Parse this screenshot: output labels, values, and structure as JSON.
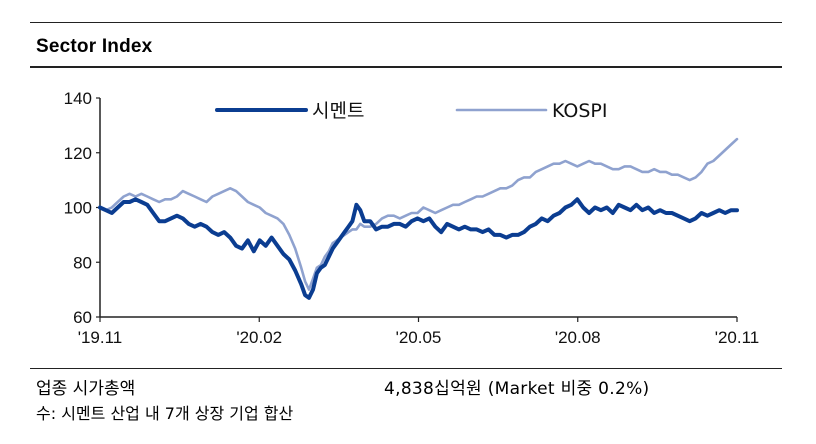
{
  "title": "Sector Index",
  "footer": {
    "left_label": "업종 시가총액",
    "right_value": "4,838십억원 (Market 비중 0.2%)",
    "note": "수: 시멘트 산업 내 7개 상장 기업 합산"
  },
  "chart_data": {
    "type": "line",
    "x_ticks": [
      "'19.11",
      "'20.02",
      "'20.05",
      "'20.08",
      "'20.11"
    ],
    "y_ticks": [
      60,
      80,
      100,
      120,
      140
    ],
    "ylim": [
      60,
      140
    ],
    "grid": false,
    "legend_position": "top-center",
    "series": [
      {
        "name": "시멘트",
        "color": "#0b3d91",
        "points": [
          [
            0,
            100
          ],
          [
            3,
            99
          ],
          [
            6,
            98
          ],
          [
            9,
            100
          ],
          [
            12,
            102
          ],
          [
            15,
            102
          ],
          [
            18,
            103
          ],
          [
            21,
            102
          ],
          [
            24,
            101
          ],
          [
            27,
            98
          ],
          [
            30,
            95
          ],
          [
            33,
            95
          ],
          [
            36,
            96
          ],
          [
            39,
            97
          ],
          [
            42,
            96
          ],
          [
            45,
            94
          ],
          [
            48,
            93
          ],
          [
            51,
            94
          ],
          [
            54,
            93
          ],
          [
            57,
            91
          ],
          [
            60,
            90
          ],
          [
            63,
            91
          ],
          [
            66,
            89
          ],
          [
            69,
            86
          ],
          [
            72,
            85
          ],
          [
            75,
            88
          ],
          [
            78,
            84
          ],
          [
            81,
            88
          ],
          [
            84,
            86
          ],
          [
            87,
            89
          ],
          [
            90,
            86
          ],
          [
            93,
            83
          ],
          [
            96,
            81
          ],
          [
            99,
            77
          ],
          [
            102,
            72
          ],
          [
            104,
            68
          ],
          [
            106,
            67
          ],
          [
            108,
            70
          ],
          [
            110,
            76
          ],
          [
            112,
            78
          ],
          [
            114,
            79
          ],
          [
            116,
            82
          ],
          [
            118,
            85
          ],
          [
            120,
            87
          ],
          [
            122,
            89
          ],
          [
            124,
            91
          ],
          [
            126,
            93
          ],
          [
            128,
            95
          ],
          [
            130,
            101
          ],
          [
            132,
            99
          ],
          [
            134,
            95
          ],
          [
            137,
            95
          ],
          [
            140,
            92
          ],
          [
            143,
            93
          ],
          [
            146,
            93
          ],
          [
            149,
            94
          ],
          [
            152,
            94
          ],
          [
            155,
            93
          ],
          [
            158,
            95
          ],
          [
            161,
            96
          ],
          [
            164,
            95
          ],
          [
            167,
            96
          ],
          [
            170,
            93
          ],
          [
            173,
            91
          ],
          [
            176,
            94
          ],
          [
            179,
            93
          ],
          [
            182,
            92
          ],
          [
            185,
            93
          ],
          [
            188,
            92
          ],
          [
            191,
            92
          ],
          [
            194,
            91
          ],
          [
            197,
            92
          ],
          [
            200,
            90
          ],
          [
            203,
            90
          ],
          [
            206,
            89
          ],
          [
            209,
            90
          ],
          [
            212,
            90
          ],
          [
            215,
            91
          ],
          [
            218,
            93
          ],
          [
            221,
            94
          ],
          [
            224,
            96
          ],
          [
            227,
            95
          ],
          [
            230,
            97
          ],
          [
            233,
            98
          ],
          [
            236,
            100
          ],
          [
            239,
            101
          ],
          [
            242,
            103
          ],
          [
            245,
            100
          ],
          [
            248,
            98
          ],
          [
            251,
            100
          ],
          [
            254,
            99
          ],
          [
            257,
            100
          ],
          [
            260,
            98
          ],
          [
            263,
            101
          ],
          [
            266,
            100
          ],
          [
            269,
            99
          ],
          [
            272,
            101
          ],
          [
            275,
            99
          ],
          [
            278,
            100
          ],
          [
            281,
            98
          ],
          [
            284,
            99
          ],
          [
            287,
            98
          ],
          [
            290,
            98
          ],
          [
            293,
            97
          ],
          [
            296,
            96
          ],
          [
            299,
            95
          ],
          [
            302,
            96
          ],
          [
            305,
            98
          ],
          [
            308,
            97
          ],
          [
            311,
            98
          ],
          [
            314,
            99
          ],
          [
            317,
            98
          ],
          [
            320,
            99
          ],
          [
            323,
            99
          ]
        ]
      },
      {
        "name": "KOSPI",
        "color": "#8fa2cf",
        "points": [
          [
            0,
            100
          ],
          [
            3,
            99
          ],
          [
            6,
            100
          ],
          [
            9,
            102
          ],
          [
            12,
            104
          ],
          [
            15,
            105
          ],
          [
            18,
            104
          ],
          [
            21,
            105
          ],
          [
            24,
            104
          ],
          [
            27,
            103
          ],
          [
            30,
            102
          ],
          [
            33,
            103
          ],
          [
            36,
            103
          ],
          [
            39,
            104
          ],
          [
            42,
            106
          ],
          [
            45,
            105
          ],
          [
            48,
            104
          ],
          [
            51,
            103
          ],
          [
            54,
            102
          ],
          [
            57,
            104
          ],
          [
            60,
            105
          ],
          [
            63,
            106
          ],
          [
            66,
            107
          ],
          [
            69,
            106
          ],
          [
            72,
            104
          ],
          [
            75,
            102
          ],
          [
            78,
            101
          ],
          [
            81,
            100
          ],
          [
            84,
            98
          ],
          [
            87,
            97
          ],
          [
            90,
            96
          ],
          [
            93,
            94
          ],
          [
            96,
            90
          ],
          [
            99,
            85
          ],
          [
            102,
            78
          ],
          [
            104,
            73
          ],
          [
            106,
            70
          ],
          [
            108,
            74
          ],
          [
            110,
            78
          ],
          [
            112,
            79
          ],
          [
            114,
            82
          ],
          [
            116,
            84
          ],
          [
            118,
            87
          ],
          [
            120,
            88
          ],
          [
            122,
            89
          ],
          [
            124,
            90
          ],
          [
            126,
            91
          ],
          [
            128,
            92
          ],
          [
            130,
            92
          ],
          [
            132,
            94
          ],
          [
            134,
            93
          ],
          [
            137,
            93
          ],
          [
            140,
            94
          ],
          [
            143,
            96
          ],
          [
            146,
            97
          ],
          [
            149,
            97
          ],
          [
            152,
            96
          ],
          [
            155,
            97
          ],
          [
            158,
            98
          ],
          [
            161,
            98
          ],
          [
            164,
            100
          ],
          [
            167,
            99
          ],
          [
            170,
            98
          ],
          [
            173,
            99
          ],
          [
            176,
            100
          ],
          [
            179,
            101
          ],
          [
            182,
            101
          ],
          [
            185,
            102
          ],
          [
            188,
            103
          ],
          [
            191,
            104
          ],
          [
            194,
            104
          ],
          [
            197,
            105
          ],
          [
            200,
            106
          ],
          [
            203,
            107
          ],
          [
            206,
            107
          ],
          [
            209,
            108
          ],
          [
            212,
            110
          ],
          [
            215,
            111
          ],
          [
            218,
            111
          ],
          [
            221,
            113
          ],
          [
            224,
            114
          ],
          [
            227,
            115
          ],
          [
            230,
            116
          ],
          [
            233,
            116
          ],
          [
            236,
            117
          ],
          [
            239,
            116
          ],
          [
            242,
            115
          ],
          [
            245,
            116
          ],
          [
            248,
            117
          ],
          [
            251,
            116
          ],
          [
            254,
            116
          ],
          [
            257,
            115
          ],
          [
            260,
            114
          ],
          [
            263,
            114
          ],
          [
            266,
            115
          ],
          [
            269,
            115
          ],
          [
            272,
            114
          ],
          [
            275,
            113
          ],
          [
            278,
            113
          ],
          [
            281,
            114
          ],
          [
            284,
            113
          ],
          [
            287,
            113
          ],
          [
            290,
            112
          ],
          [
            293,
            112
          ],
          [
            296,
            111
          ],
          [
            299,
            110
          ],
          [
            302,
            111
          ],
          [
            305,
            113
          ],
          [
            308,
            116
          ],
          [
            311,
            117
          ],
          [
            314,
            119
          ],
          [
            317,
            121
          ],
          [
            320,
            123
          ],
          [
            323,
            125
          ]
        ]
      }
    ]
  }
}
